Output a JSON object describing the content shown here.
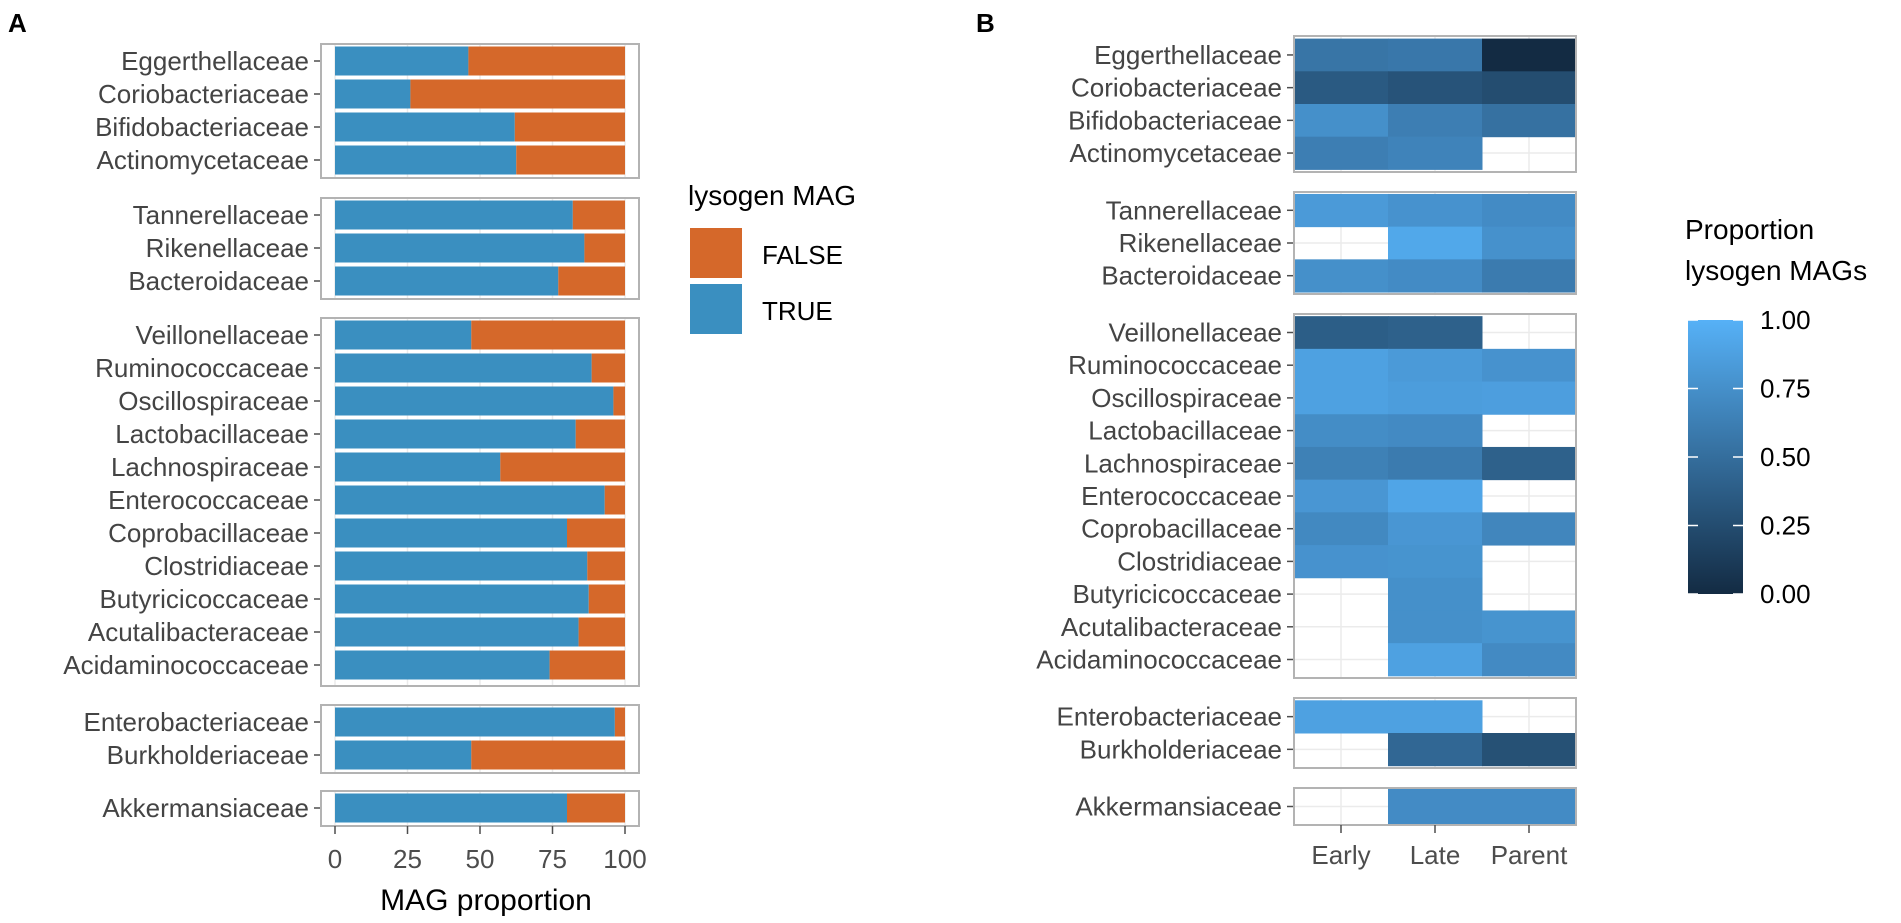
{
  "chart_data": [
    {
      "panel": "A",
      "type": "bar",
      "orientation": "horizontal",
      "stacked": true,
      "xlabel": "MAG proportion",
      "ylabel": "",
      "xlim": [
        0,
        100
      ],
      "xticks": [
        0,
        25,
        50,
        75,
        100
      ],
      "legend": {
        "title": "lysogen MAG",
        "placement": "right"
      },
      "series": [
        {
          "name": "TRUE",
          "color": "#3A8FC0"
        },
        {
          "name": "FALSE",
          "color": "#D5682A"
        }
      ],
      "facets": [
        {
          "categories": [
            "Eggerthellaceae",
            "Coriobacteriaceae",
            "Bifidobacteriaceae",
            "Actinomycetaceae"
          ],
          "true_values": [
            46,
            26,
            62,
            62.5
          ],
          "false_values": [
            54,
            74,
            38,
            37.5
          ]
        },
        {
          "categories": [
            "Tannerellaceae",
            "Rikenellaceae",
            "Bacteroidaceae"
          ],
          "true_values": [
            82,
            86,
            77
          ],
          "false_values": [
            18,
            14,
            23
          ]
        },
        {
          "categories": [
            "Veillonellaceae",
            "Ruminococcaceae",
            "Oscillospiraceae",
            "Lactobacillaceae",
            "Lachnospiraceae",
            "Enterococcaceae",
            "Coprobacillaceae",
            "Clostridiaceae",
            "Butyricicoccaceae",
            "Acutalibacteraceae",
            "Acidaminococcaceae"
          ],
          "true_values": [
            47,
            88.5,
            96,
            83,
            57,
            93,
            80,
            87,
            87.5,
            84,
            74
          ],
          "false_values": [
            53,
            11.5,
            4,
            17,
            43,
            7,
            20,
            13,
            12.5,
            16,
            26
          ]
        },
        {
          "categories": [
            "Enterobacteriaceae",
            "Burkholderiaceae"
          ],
          "true_values": [
            96.5,
            47
          ],
          "false_values": [
            3.5,
            53
          ]
        },
        {
          "categories": [
            "Akkermansiaceae"
          ],
          "true_values": [
            80
          ],
          "false_values": [
            20
          ]
        }
      ]
    },
    {
      "panel": "B",
      "type": "heatmap",
      "columns": [
        "Early",
        "Late",
        "Parent"
      ],
      "legend": {
        "title": [
          "Proportion",
          "lysogen MAGs"
        ],
        "ticks": [
          "1.00",
          "0.75",
          "0.50",
          "0.25",
          "0.00"
        ],
        "range": [
          0,
          1
        ],
        "placement": "right",
        "low_color": "#132B43",
        "high_color": "#56B1F7"
      },
      "facets": [
        {
          "rows": [
            "Eggerthellaceae",
            "Coriobacteriaceae",
            "Bifidobacteriaceae",
            "Actinomycetaceae"
          ],
          "values": [
            [
              0.55,
              0.57,
              0.0
            ],
            [
              0.35,
              0.3,
              0.25
            ],
            [
              0.75,
              0.62,
              0.52
            ],
            [
              0.62,
              0.66,
              null
            ]
          ]
        },
        {
          "rows": [
            "Tannerellaceae",
            "Rikenellaceae",
            "Bacteroidaceae"
          ],
          "values": [
            [
              0.83,
              0.77,
              0.72
            ],
            [
              null,
              0.93,
              0.76
            ],
            [
              0.75,
              0.72,
              0.6
            ]
          ]
        },
        {
          "rows": [
            "Veillonellaceae",
            "Ruminococcaceae",
            "Oscillospiraceae",
            "Lactobacillaceae",
            "Lachnospiraceae",
            "Enterococcaceae",
            "Coprobacillaceae",
            "Clostridiaceae",
            "Butyricicoccaceae",
            "Acutalibacteraceae",
            "Acidaminococcaceae"
          ],
          "values": [
            [
              0.38,
              0.4,
              null
            ],
            [
              0.88,
              0.83,
              0.77
            ],
            [
              0.88,
              0.85,
              0.86
            ],
            [
              0.73,
              0.71,
              null
            ],
            [
              0.64,
              0.6,
              0.4
            ],
            [
              0.8,
              0.91,
              null
            ],
            [
              0.7,
              0.8,
              0.68
            ],
            [
              0.77,
              0.78,
              null
            ],
            [
              null,
              0.75,
              null
            ],
            [
              null,
              0.75,
              0.78
            ],
            [
              null,
              0.88,
              0.71
            ]
          ]
        },
        {
          "rows": [
            "Enterobacteriaceae",
            "Burkholderiaceae"
          ],
          "values": [
            [
              0.88,
              0.88,
              null
            ],
            [
              null,
              0.45,
              0.28
            ]
          ]
        },
        {
          "rows": [
            "Akkermansiaceae"
          ],
          "values": [
            [
              null,
              0.72,
              0.72
            ]
          ]
        }
      ]
    }
  ]
}
